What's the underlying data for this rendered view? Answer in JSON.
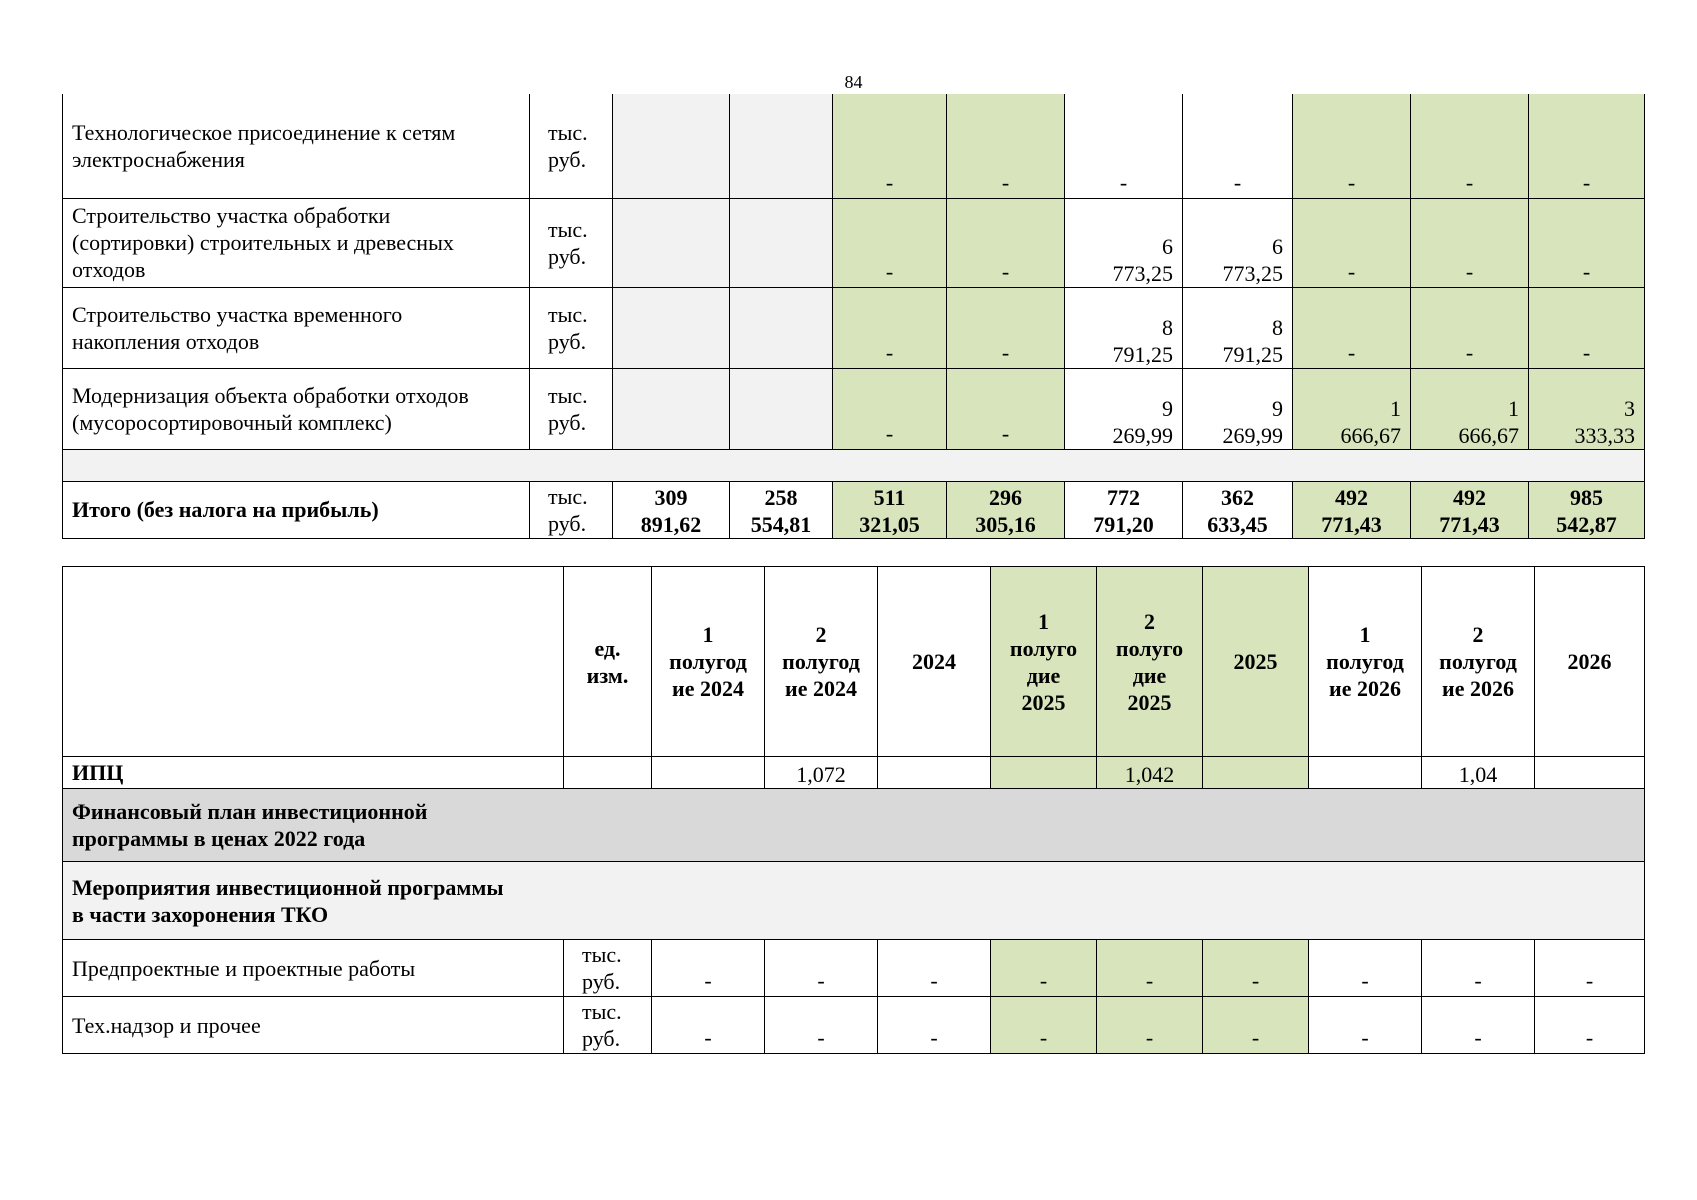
{
  "page_number": "84",
  "table1": {
    "unit": "тыс.\nруб.",
    "rows": [
      {
        "name": "Технологическое присоединение к сетям\nэлектроснабжения",
        "c1": "",
        "c2": "",
        "c3": "-",
        "c4": "-",
        "c5": "-",
        "c6": "-",
        "c7": "-",
        "c8": "-",
        "c9": "-"
      },
      {
        "name": "Строительство участка обработки\n(сортировки) строительных и древесных\nотходов",
        "c1": "",
        "c2": "",
        "c3": "-",
        "c4": "-",
        "c5": "6\n773,25",
        "c6": "6\n773,25",
        "c7": "-",
        "c8": "-",
        "c9": "-"
      },
      {
        "name": "Строительство участка временного\nнакопления отходов",
        "c1": "",
        "c2": "",
        "c3": "-",
        "c4": "-",
        "c5": "8\n791,25",
        "c6": "8\n791,25",
        "c7": "-",
        "c8": "-",
        "c9": "-"
      },
      {
        "name": "Модернизация объекта обработки отходов\n(мусоросортировочный комплекс)",
        "c1": "",
        "c2": "",
        "c3": "-",
        "c4": "-",
        "c5": "9\n269,99",
        "c6": "9\n269,99",
        "c7": "1\n666,67",
        "c8": "1\n666,67",
        "c9": "3\n333,33"
      }
    ],
    "total": {
      "name": "Итого  (без налога на прибыль)",
      "c1": "309\n891,62",
      "c2": "258\n554,81",
      "c3": "511\n321,05",
      "c4": "296\n305,16",
      "c5": "772\n791,20",
      "c6": "362\n633,45",
      "c7": "492\n771,43",
      "c8": "492\n771,43",
      "c9": "985\n542,87"
    }
  },
  "table2": {
    "headers": [
      "",
      "ед.\nизм.",
      "1\nполугод\nие 2024",
      "2\nполугод\nие 2024",
      "2024",
      "1\nполуго\nдие\n2025",
      "2\nполуго\nдие\n2025",
      "2025",
      "1\nполугод\nие 2026",
      "2\nполугод\nие 2026",
      "2026"
    ],
    "ipc": {
      "name": "ИПЦ",
      "unit": "",
      "c1": "",
      "c2": "1,072",
      "c3": "",
      "c4": "",
      "c5": "1,042",
      "c6": "",
      "c7": "",
      "c8": "1,04",
      "c9": ""
    },
    "section1": "Финансовый план инвестиционной\nпрограммы в ценах 2022 года",
    "section2": "Мероприятия инвестиционной программы\nв части захоронения ТКО",
    "unit": "тыс.\nруб.",
    "rows": [
      {
        "name": "Предпроектные и проектные  работы",
        "vals": [
          "-",
          "-",
          "-",
          "-",
          "-",
          "-",
          "-",
          "-",
          "-"
        ]
      },
      {
        "name": "Тех.надзор и прочее",
        "vals": [
          "-",
          "-",
          "-",
          "-",
          "-",
          "-",
          "-",
          "-",
          "-"
        ]
      }
    ]
  },
  "colors": {
    "green_fill": "#d8e4bc",
    "light_gray": "#f2f2f2",
    "section_gray": "#d9d9d9"
  }
}
